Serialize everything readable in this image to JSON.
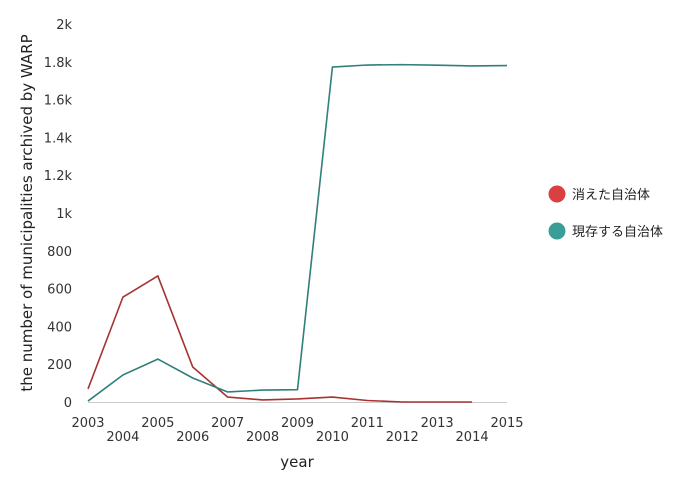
{
  "chart_data": {
    "type": "line",
    "title": "",
    "xlabel": "year",
    "ylabel": "the number of municipalities archived by WARP",
    "ylim": [
      0,
      2000
    ],
    "xlim": [
      2003,
      2015
    ],
    "yticks": [
      "0",
      "200",
      "400",
      "600",
      "800",
      "1k",
      "1.2k",
      "1.4k",
      "1.6k",
      "1.8k",
      "2k"
    ],
    "xticks": [
      "2003",
      "2004",
      "2005",
      "2006",
      "2007",
      "2008",
      "2009",
      "2010",
      "2011",
      "2012",
      "2013",
      "2014",
      "2015"
    ],
    "grid": false,
    "legend_position": "right",
    "series": [
      {
        "name": "消えた自治体",
        "color": "#a83232",
        "legend_color": "#d94040",
        "x": [
          2003,
          2004,
          2005,
          2006,
          2007,
          2008,
          2009,
          2010,
          2011,
          2012,
          2013,
          2014
        ],
        "values": [
          69,
          555,
          667,
          185,
          26,
          11,
          16,
          26,
          8,
          0,
          0,
          0
        ]
      },
      {
        "name": "現存する自治体",
        "color": "#2f7f7a",
        "legend_color": "#3a9e98",
        "x": [
          2003,
          2004,
          2005,
          2006,
          2007,
          2008,
          2009,
          2010,
          2011,
          2012,
          2013,
          2014,
          2015
        ],
        "values": [
          5,
          143,
          227,
          127,
          53,
          63,
          65,
          1772,
          1783,
          1785,
          1782,
          1778,
          1780
        ]
      }
    ]
  }
}
